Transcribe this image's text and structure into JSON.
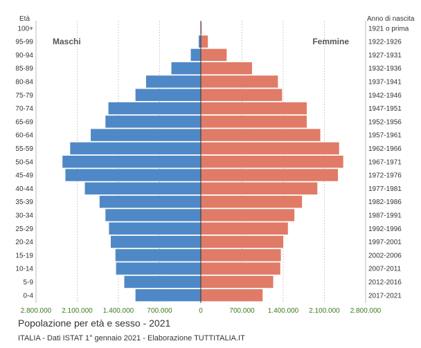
{
  "chart_data": {
    "type": "bar",
    "orientation": "horizontal-population-pyramid",
    "title": "Popolazione per età e sesso - 2021",
    "source": "ITALIA - Dati ISTAT 1° gennaio 2021 - Elaborazione TUTTITALIA.IT",
    "left_axis_header": "Età",
    "right_axis_header": "Anno di nascita",
    "categories": [
      "100+",
      "95-99",
      "90-94",
      "85-89",
      "80-84",
      "75-79",
      "70-74",
      "65-69",
      "60-64",
      "55-59",
      "50-54",
      "45-49",
      "40-44",
      "35-39",
      "30-34",
      "25-29",
      "20-24",
      "15-19",
      "10-14",
      "5-9",
      "0-4"
    ],
    "birth_years": [
      "1921 o prima",
      "1922-1926",
      "1927-1931",
      "1932-1936",
      "1937-1941",
      "1942-1946",
      "1947-1951",
      "1952-1956",
      "1957-1961",
      "1962-1966",
      "1967-1971",
      "1972-1976",
      "1977-1981",
      "1982-1986",
      "1987-1991",
      "1992-1996",
      "1997-2001",
      "2002-2006",
      "2007-2011",
      "2012-2016",
      "2017-2021"
    ],
    "series": [
      {
        "name": "Maschi",
        "color": "#4f88c6",
        "values": [
          3000,
          35000,
          170000,
          500000,
          930000,
          1110000,
          1570000,
          1620000,
          1870000,
          2220000,
          2350000,
          2300000,
          1970000,
          1720000,
          1620000,
          1560000,
          1530000,
          1450000,
          1440000,
          1300000,
          1110000
        ]
      },
      {
        "name": "Femmine",
        "color": "#e07b67",
        "values": [
          14000,
          120000,
          440000,
          870000,
          1310000,
          1380000,
          1800000,
          1800000,
          2030000,
          2350000,
          2420000,
          2330000,
          1980000,
          1720000,
          1590000,
          1480000,
          1400000,
          1360000,
          1350000,
          1230000,
          1050000
        ]
      }
    ],
    "xlim": [
      -2800000,
      2800000
    ],
    "x_ticks": [
      -2800000,
      -2100000,
      -1400000,
      -700000,
      0,
      700000,
      1400000,
      2100000,
      2800000
    ],
    "x_tick_labels": [
      "2.800.000",
      "2.100.000",
      "1.400.000",
      "700.000",
      "0",
      "700.000",
      "1.400.000",
      "2.100.000",
      "2.800.000"
    ],
    "grid": true,
    "legend": "inside-top"
  }
}
